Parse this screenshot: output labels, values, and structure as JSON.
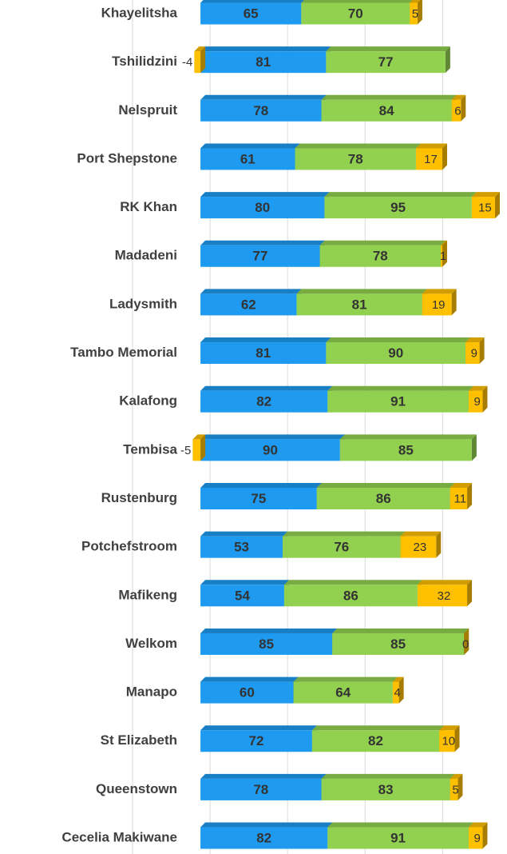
{
  "chart_data": {
    "type": "stacked_bar_horizontal",
    "categories": [
      "Khayelitsha",
      "Tshilidzini",
      "Nelspruit",
      "Port Shepstone",
      "RK Khan",
      "Madadeni",
      "Ladysmith",
      "Tambo Memorial",
      "Kalafong",
      "Tembisa",
      "Rustenburg",
      "Potchefstroom",
      "Mafikeng",
      "Welkom",
      "Manapo",
      "St Elizabeth",
      "Queenstown",
      "Cecelia Makiwane"
    ],
    "series": [
      {
        "color": "#1e9bf0",
        "values": [
          65,
          81,
          78,
          61,
          80,
          77,
          62,
          81,
          82,
          90,
          75,
          53,
          54,
          85,
          60,
          72,
          78,
          82
        ]
      },
      {
        "color": "#92d050",
        "values": [
          70,
          77,
          84,
          78,
          95,
          78,
          81,
          90,
          91,
          85,
          86,
          76,
          86,
          85,
          64,
          82,
          83,
          91
        ]
      },
      {
        "color": "#ffc000",
        "values": [
          5,
          -4,
          6,
          17,
          15,
          1,
          19,
          9,
          9,
          -5,
          11,
          23,
          32,
          0,
          4,
          10,
          5,
          9
        ]
      }
    ],
    "xlim": [
      -50,
      190
    ],
    "xticks": [
      -50,
      0,
      50,
      100,
      150
    ],
    "grid": true
  }
}
